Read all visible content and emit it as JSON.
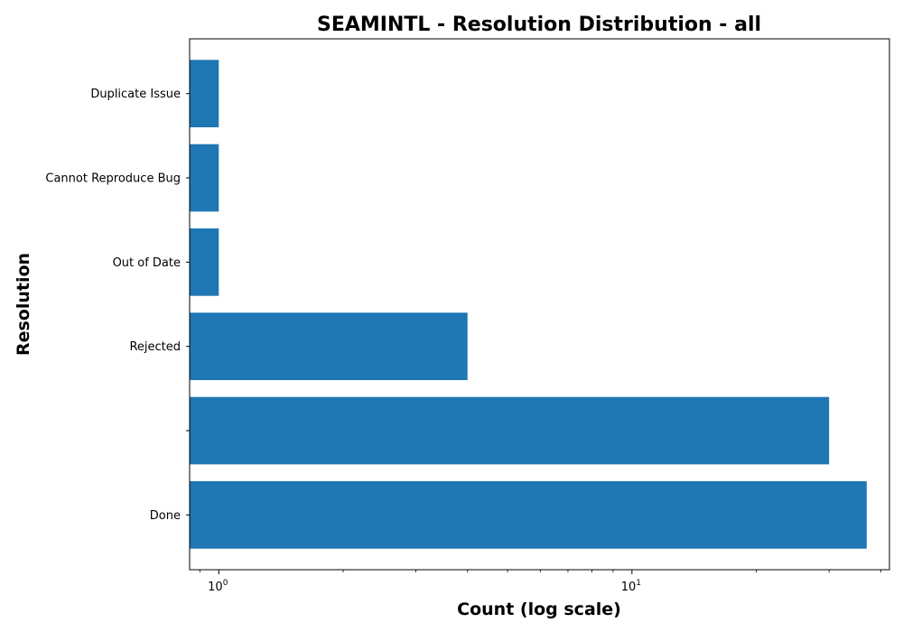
{
  "chart_data": {
    "type": "bar",
    "orientation": "horizontal",
    "title": "SEAMINTL - Resolution Distribution - all",
    "xlabel": "Count (log scale)",
    "ylabel": "Resolution",
    "x_scale": "log",
    "xlim": [
      0.85,
      42
    ],
    "x_ticks": [
      {
        "value": 1,
        "base": "10",
        "exp": "0"
      },
      {
        "value": 10,
        "base": "10",
        "exp": "1"
      }
    ],
    "categories": [
      "Done",
      "",
      "Rejected",
      "Out of Date",
      "Cannot Reproduce Bug",
      "Duplicate Issue"
    ],
    "values": [
      37,
      30,
      4,
      1,
      1,
      1
    ],
    "bar_color": "#1f77b4",
    "grid": false,
    "legend": "none"
  }
}
